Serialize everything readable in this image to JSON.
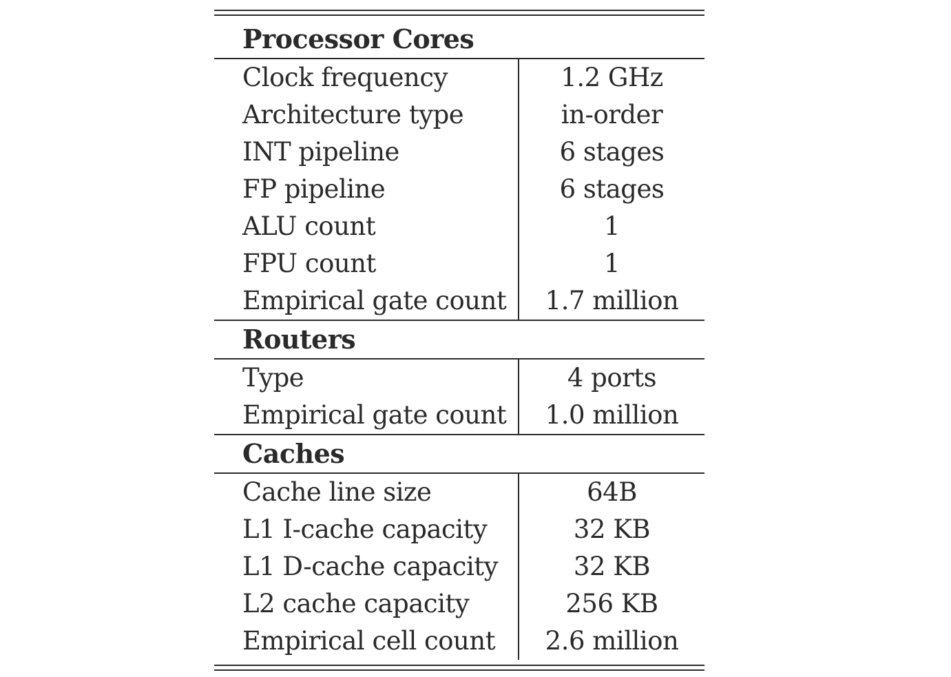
{
  "sections": [
    {
      "title": "Processor Cores",
      "rows": [
        {
          "label": "Clock frequency",
          "value": "1.2 GHz"
        },
        {
          "label": "Architecture type",
          "value": "in-order"
        },
        {
          "label": "INT pipeline",
          "value": "6 stages"
        },
        {
          "label": "FP pipeline",
          "value": "6 stages"
        },
        {
          "label": "ALU count",
          "value": "1"
        },
        {
          "label": "FPU count",
          "value": "1"
        },
        {
          "label": "Empirical gate count",
          "value": "1.7 million"
        }
      ]
    },
    {
      "title": "Routers",
      "rows": [
        {
          "label": "Type",
          "value": "4 ports"
        },
        {
          "label": "Empirical gate count",
          "value": "1.0 million"
        }
      ]
    },
    {
      "title": "Caches",
      "rows": [
        {
          "label": "Cache line size",
          "value": "64B"
        },
        {
          "label": "L1 I-cache capacity",
          "value": "32 KB"
        },
        {
          "label": "L1 D-cache capacity",
          "value": "32 KB"
        },
        {
          "label": "L2 cache capacity",
          "value": "256 KB"
        },
        {
          "label": "Empirical cell count",
          "value": "2.6 million"
        }
      ]
    }
  ]
}
